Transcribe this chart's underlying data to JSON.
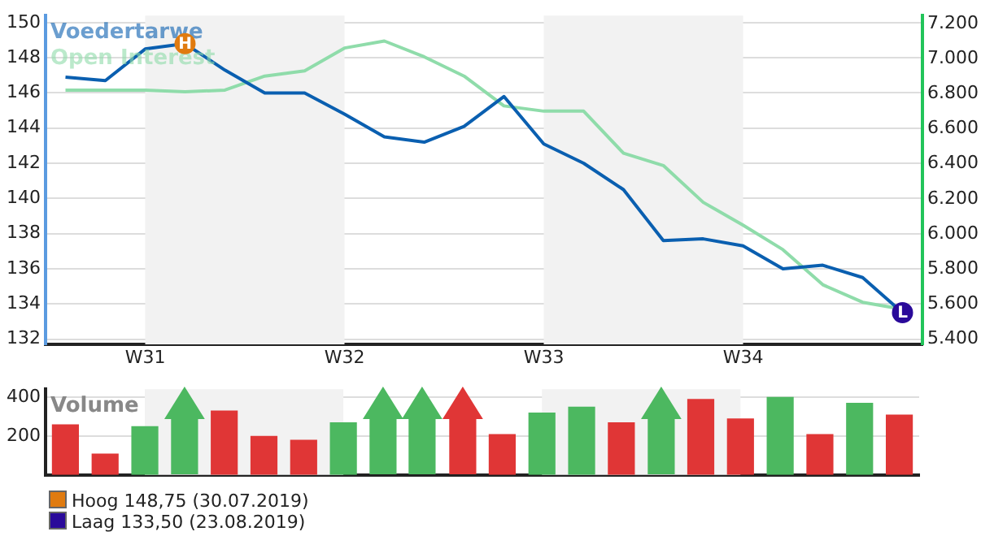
{
  "chart_data": [
    {
      "type": "line",
      "categories": [
        null,
        null,
        "W31",
        null,
        null,
        null,
        null,
        "W32",
        null,
        null,
        null,
        null,
        "W33",
        null,
        null,
        null,
        null,
        "W34",
        null,
        null,
        null,
        null
      ],
      "series": [
        {
          "name": "Voedertarwe",
          "color": "#0a5fb0",
          "values": [
            146.9,
            146.7,
            148.5,
            148.8,
            147.3,
            146.0,
            146.0,
            144.8,
            143.5,
            143.2,
            144.1,
            145.8,
            143.1,
            142.0,
            140.5,
            137.6,
            137.7,
            137.3,
            136.0,
            136.2,
            135.5,
            133.5
          ]
        },
        {
          "name": "Open Interest",
          "color": "#8fdcaa",
          "axis": "y2",
          "values": [
            6820,
            6820,
            6820,
            6810,
            6820,
            6900,
            6930,
            7060,
            7100,
            7010,
            6900,
            6730,
            6700,
            6700,
            6460,
            6390,
            6180,
            6050,
            5910,
            5710,
            5610,
            5570
          ]
        }
      ],
      "ylim": [
        131.7,
        150.4
      ],
      "yticks": [
        132,
        134,
        136,
        138,
        140,
        142,
        144,
        146,
        148,
        150
      ],
      "y2lim": [
        5370,
        7245
      ],
      "y2ticks": [
        {
          "value": 5400,
          "label": "5.400"
        },
        {
          "value": 5600,
          "label": "5.600"
        },
        {
          "value": 5800,
          "label": "5.800"
        },
        {
          "value": 6000,
          "label": "6.000"
        },
        {
          "value": 6200,
          "label": "6.200"
        },
        {
          "value": 6400,
          "label": "6.400"
        },
        {
          "value": 6600,
          "label": "6.600"
        },
        {
          "value": 6800,
          "label": "6.800"
        },
        {
          "value": 7000,
          "label": "7.000"
        },
        {
          "value": 7200,
          "label": "7.200"
        }
      ],
      "grid": "y",
      "legend": "top left",
      "bands": [
        {
          "axis": "x",
          "from": "W31",
          "to": "W32",
          "color": "#f2f2f2"
        },
        {
          "axis": "x",
          "from": "W33",
          "to": "W34",
          "color": "#f2f2f2"
        }
      ],
      "annotations": [
        {
          "text": "H",
          "y": 148.8
        },
        {
          "text": "L",
          "y": 133.5
        }
      ]
    },
    {
      "type": "bar",
      "categories": [
        null,
        null,
        "W31",
        null,
        null,
        null,
        null,
        "W32",
        null,
        null,
        null,
        null,
        "W33",
        null,
        null,
        null,
        null,
        "W34",
        null,
        null,
        null,
        null
      ],
      "series": [
        {
          "name": "Volume",
          "colors": [
            "#e03636",
            "#e03636",
            "#4cb860",
            "#4cb860",
            "#e03636",
            "#e03636",
            "#e03636",
            "#4cb860",
            "#4cb860",
            "#4cb860",
            "#e03636",
            "#e03636",
            "#4cb860",
            "#4cb860",
            "#e03636",
            "#4cb860",
            "#e03636",
            "#e03636",
            "#4cb860",
            "#e03636",
            "#4cb860",
            "#e03636"
          ],
          "values": [
            260,
            110,
            250,
            null,
            330,
            200,
            180,
            270,
            null,
            null,
            null,
            210,
            320,
            350,
            270,
            null,
            390,
            290,
            400,
            210,
            370,
            310
          ]
        }
      ],
      "ylim": [
        0,
        440
      ],
      "yticks": [
        200,
        400
      ],
      "grid": "y",
      "legend": "top left",
      "tick_labels": "y",
      "bands": [
        {
          "axis": "x",
          "from": "W31",
          "to": "W32",
          "color": "#f2f2f2"
        },
        {
          "axis": "x",
          "from": "W33",
          "to": "W34",
          "color": "#f2f2f2"
        }
      ],
      "annotations": [
        "Hoog 148,75 (30.07.2019)",
        "Laag 133,50 (23.08.2019)"
      ]
    }
  ]
}
